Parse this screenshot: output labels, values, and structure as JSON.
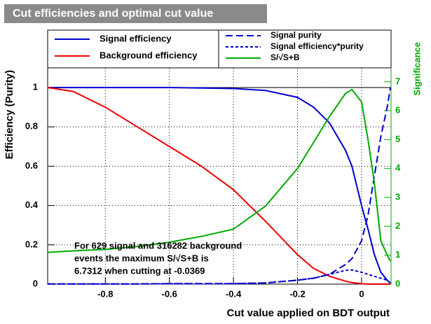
{
  "chart_data": {
    "type": "line",
    "title": "Cut efficiencies and optimal cut value",
    "x_label": "Cut value applied on BDT output",
    "y_label": "Efficiency (Purity)",
    "y2_label": "Significance",
    "x": [
      -0.98,
      -0.9,
      -0.8,
      -0.7,
      -0.6,
      -0.5,
      -0.4,
      -0.3,
      -0.2,
      -0.15,
      -0.1,
      -0.05,
      -0.03,
      0,
      0.02,
      0.04,
      0.06,
      0.08,
      0.09
    ],
    "series": [
      {
        "name": "Signal efficiency",
        "color": "#0000cc",
        "style": "solid",
        "values": [
          1,
          1,
          1,
          1,
          1,
          0.998,
          0.995,
          0.985,
          0.95,
          0.9,
          0.82,
          0.68,
          0.6,
          0.4,
          0.28,
          0.15,
          0.06,
          0.02,
          0.005
        ]
      },
      {
        "name": "Background efficiency",
        "color": "#ee0000",
        "style": "solid",
        "values": [
          1,
          0.98,
          0.9,
          0.8,
          0.7,
          0.6,
          0.48,
          0.32,
          0.15,
          0.08,
          0.04,
          0.015,
          0.008,
          0.002,
          0,
          0,
          0,
          0,
          0
        ]
      },
      {
        "name": "Signal purity",
        "color": "#0000cc",
        "style": "dashed",
        "values": [
          0.001,
          0.001,
          0.001,
          0.001,
          0.002,
          0.002,
          0.002,
          0.006,
          0.02,
          0.03,
          0.05,
          0.1,
          0.13,
          0.22,
          0.35,
          0.55,
          0.75,
          0.9,
          1
        ]
      },
      {
        "name": "Signal efficiency*purity",
        "color": "#0000cc",
        "style": "dotted",
        "values": [
          0.001,
          0.001,
          0.001,
          0.001,
          0.002,
          0.002,
          0.002,
          0.006,
          0.02,
          0.03,
          0.05,
          0.07,
          0.072,
          0.06,
          0.05,
          0.04,
          0.03,
          0.02,
          0.005
        ]
      },
      {
        "name": "S/√S+B",
        "color": "#00aa00",
        "style": "solid",
        "axis": "y2",
        "values": [
          1.1,
          1.15,
          1.2,
          1.3,
          1.45,
          1.65,
          1.9,
          2.7,
          4.0,
          4.9,
          5.8,
          6.6,
          6.73,
          6.3,
          5.0,
          3.5,
          1.5,
          1.0,
          0.8
        ]
      }
    ],
    "xlim": [
      -0.98,
      0.092
    ],
    "xticks": [
      -0.8,
      -0.6,
      -0.4,
      -0.2,
      0
    ],
    "ylim": [
      0,
      1.1
    ],
    "yticks": [
      0,
      0.2,
      0.4,
      0.6,
      0.8,
      1
    ],
    "y2lim": [
      0,
      7.48
    ],
    "y2ticks": [
      0,
      1,
      2,
      3,
      4,
      5,
      6,
      7
    ],
    "grid": true,
    "annotation": [
      "For 629 signal and 316282 background",
      "events the maximum S/√S+B is",
      "6.7312 when cutting at -0.0369"
    ]
  }
}
